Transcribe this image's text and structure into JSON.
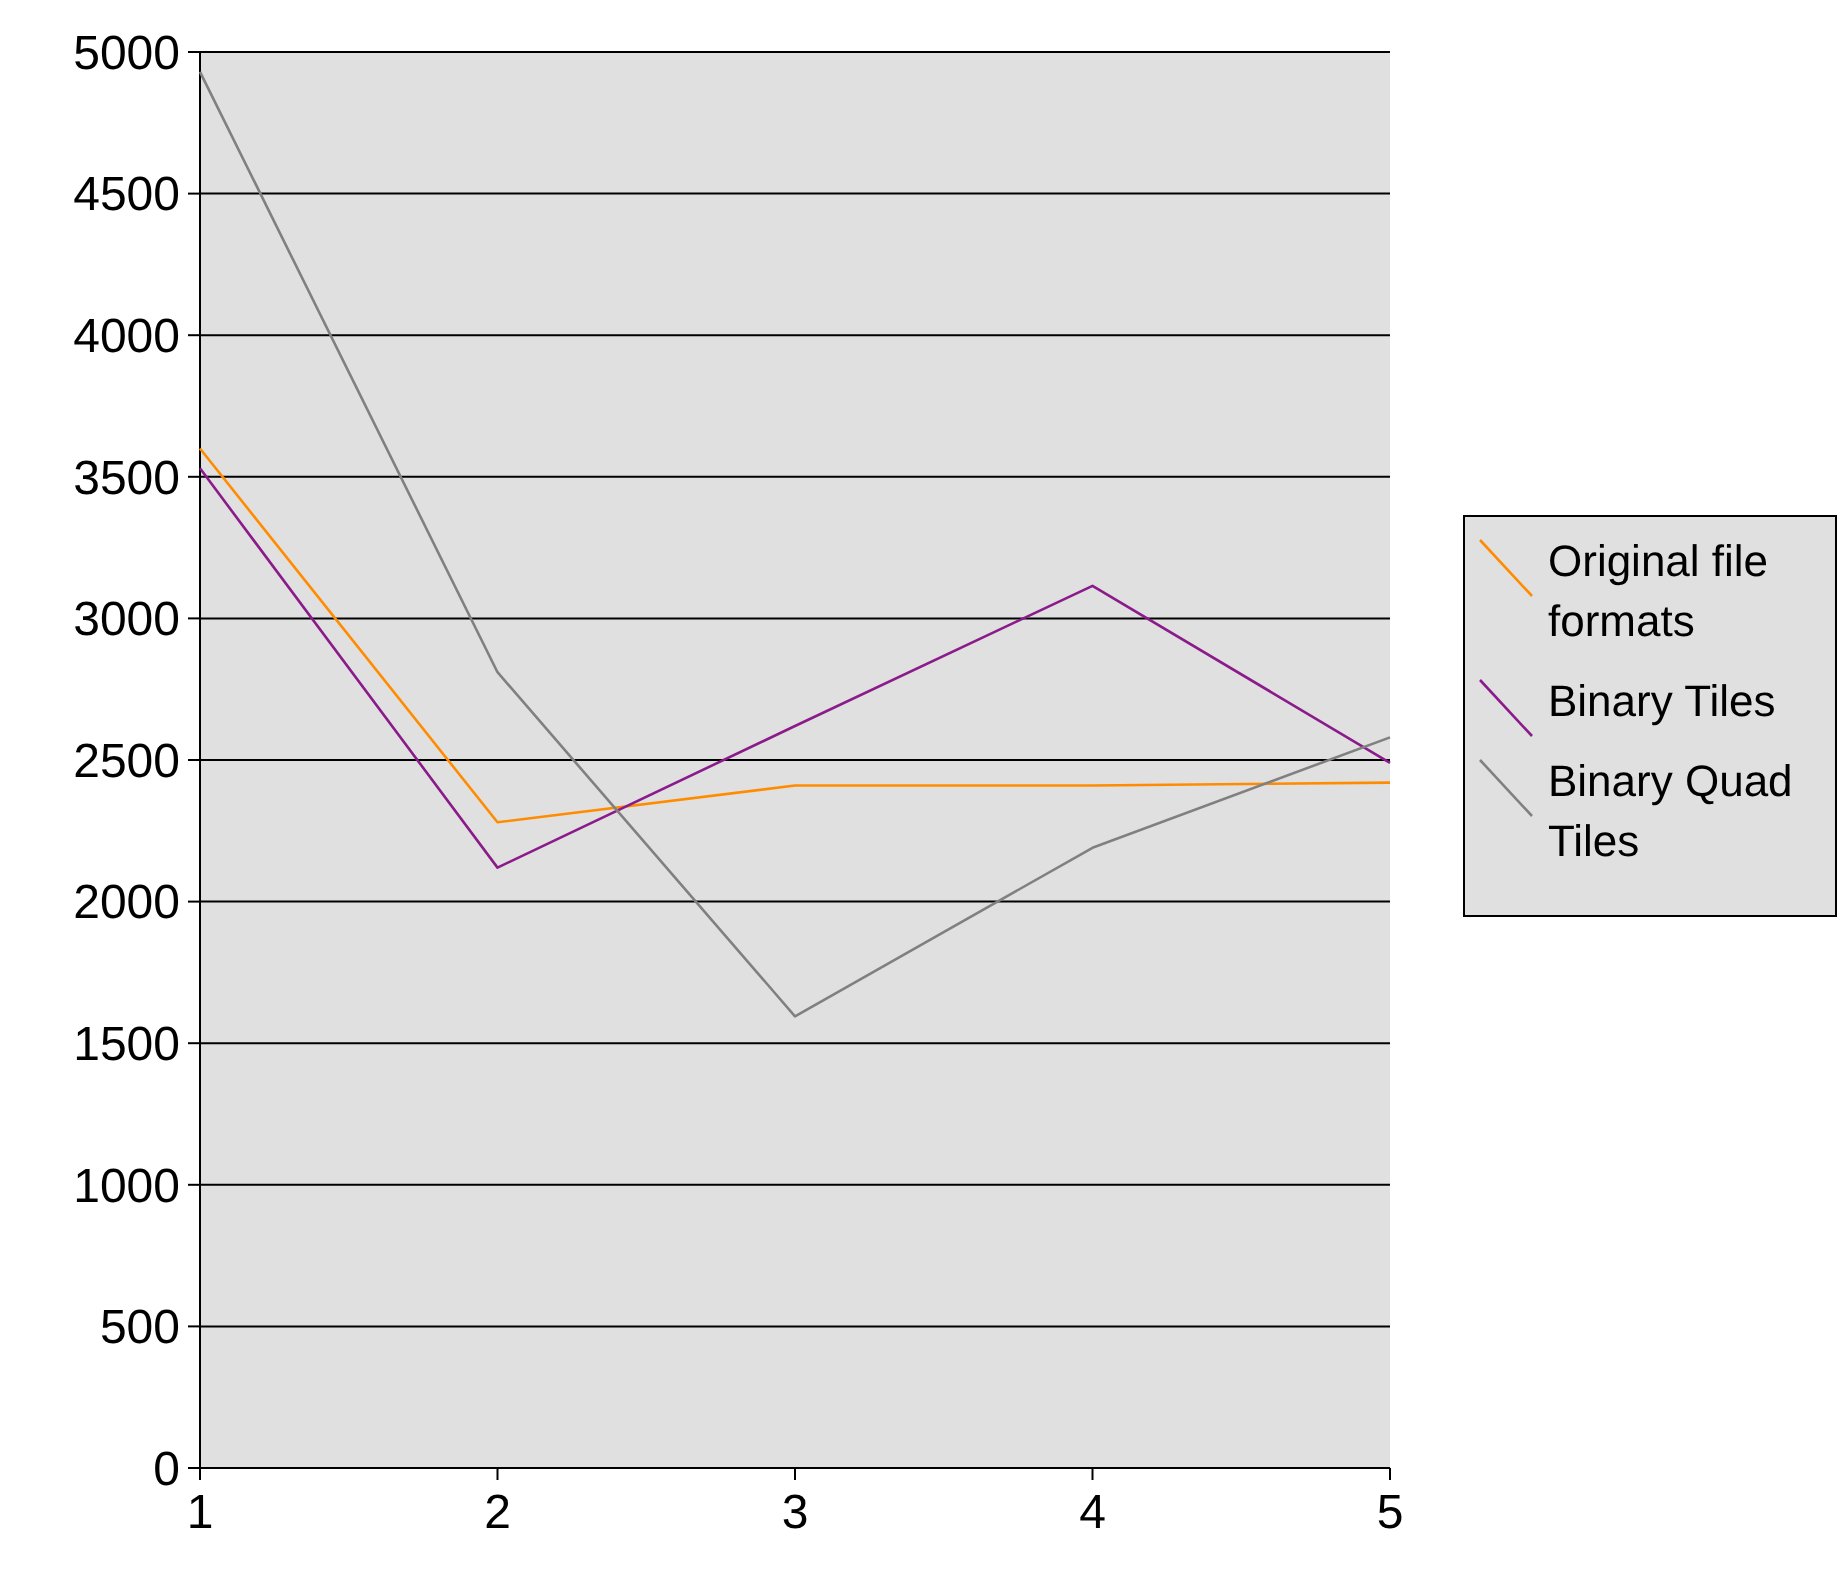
{
  "chart_data": {
    "type": "line",
    "x": [
      1,
      2,
      3,
      4,
      5
    ],
    "xlim": [
      1,
      5
    ],
    "xticks": [
      1,
      2,
      3,
      4,
      5
    ],
    "ylim": [
      0,
      5000
    ],
    "yticks": [
      0,
      500,
      1000,
      1500,
      2000,
      2500,
      3000,
      3500,
      4000,
      4500,
      5000
    ],
    "grid": "y",
    "legend": "right",
    "marker": "none",
    "series": [
      {
        "name": "Original file formats",
        "color": "#ff8c00",
        "values": [
          3600,
          2280,
          2410,
          2410,
          2420
        ]
      },
      {
        "name": "Binary Tiles",
        "color": "#8b1a8b",
        "values": [
          3530,
          2120,
          2620,
          3115,
          2490
        ]
      },
      {
        "name": "Binary Quad Tiles",
        "color": "#808080",
        "values": [
          4930,
          2810,
          1595,
          2190,
          2580
        ]
      }
    ]
  }
}
